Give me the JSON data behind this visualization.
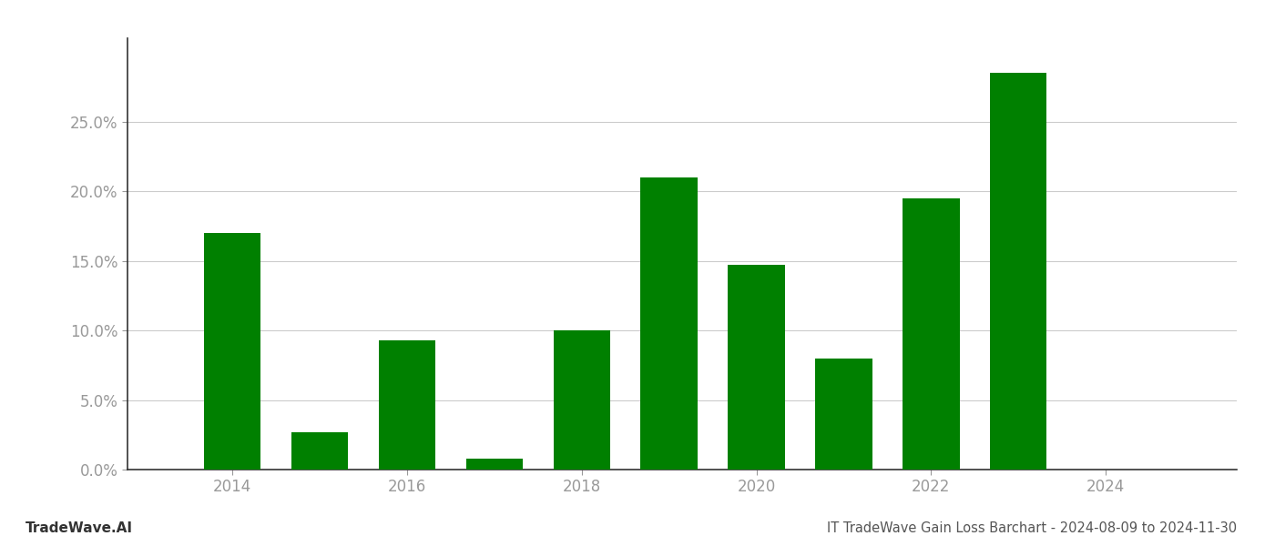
{
  "years": [
    2014,
    2015,
    2016,
    2017,
    2018,
    2019,
    2020,
    2021,
    2022,
    2023,
    2024
  ],
  "values": [
    0.17,
    0.027,
    0.093,
    0.008,
    0.1,
    0.21,
    0.147,
    0.08,
    0.195,
    0.285,
    null
  ],
  "bar_color": "#008000",
  "title": "IT TradeWave Gain Loss Barchart - 2024-08-09 to 2024-11-30",
  "watermark": "TradeWave.AI",
  "ylim": [
    0,
    0.31
  ],
  "yticks": [
    0.0,
    0.05,
    0.1,
    0.15,
    0.2,
    0.25
  ],
  "background_color": "#ffffff",
  "grid_color": "#cccccc",
  "axis_label_color": "#999999",
  "title_color": "#555555",
  "watermark_color": "#333333",
  "bar_width": 0.65,
  "title_fontsize": 10.5,
  "tick_fontsize": 12,
  "watermark_fontsize": 11
}
